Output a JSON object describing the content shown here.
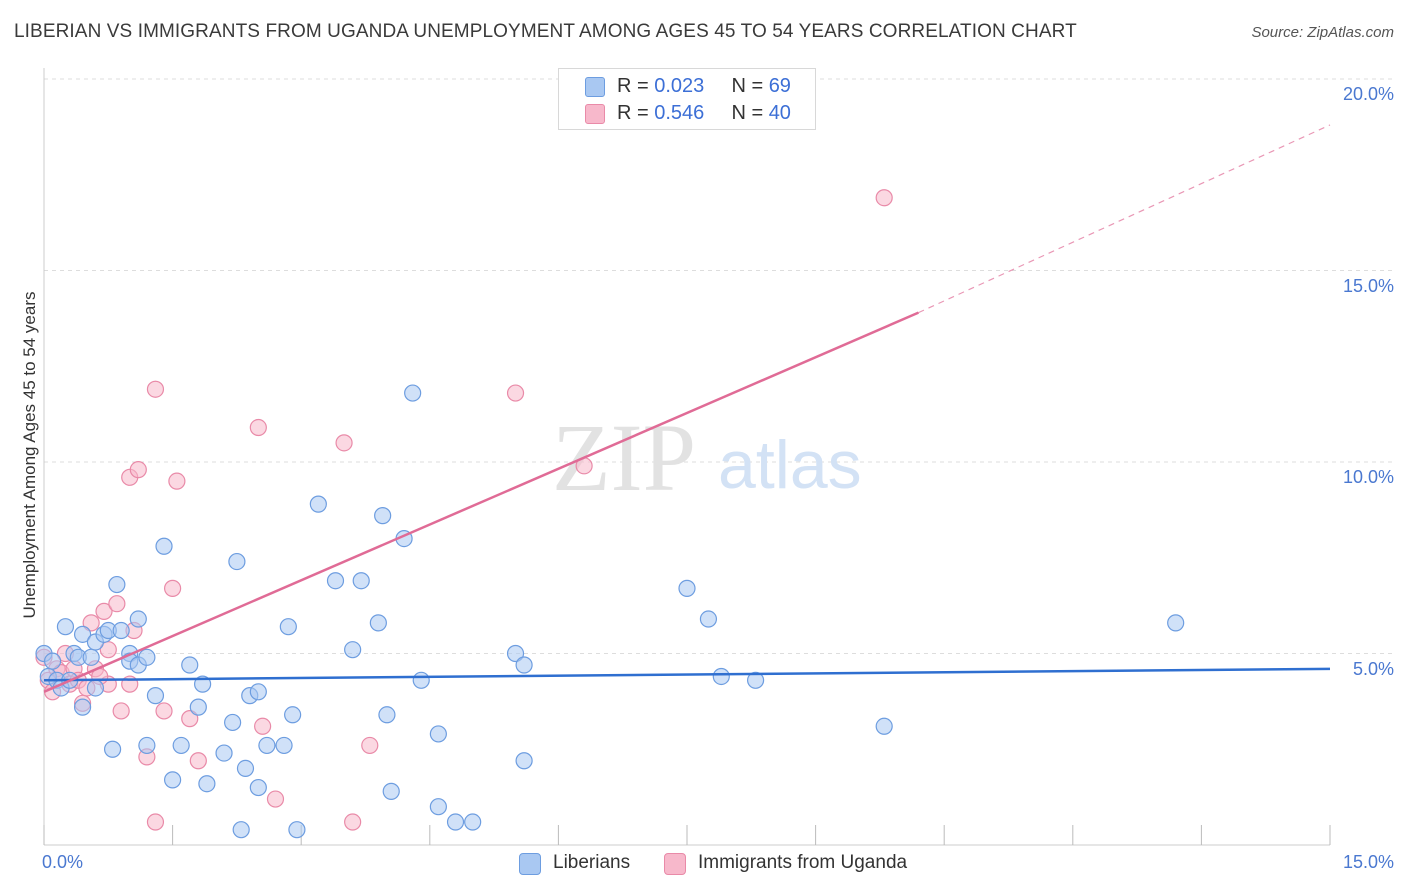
{
  "header": {
    "title": "LIBERIAN VS IMMIGRANTS FROM UGANDA UNEMPLOYMENT AMONG AGES 45 TO 54 YEARS CORRELATION CHART",
    "source": "Source: ZipAtlas.com"
  },
  "watermark": {
    "zip": "ZIP",
    "atlas": "atlas"
  },
  "legend": {
    "rows": [
      {
        "r_label": "R = ",
        "r_value": "0.023",
        "n_label": "N = ",
        "n_value": "69",
        "color": "#a9c8f2"
      },
      {
        "r_label": "R = ",
        "r_value": "0.546",
        "n_label": "N = ",
        "n_value": "40",
        "color": "#f7b8cb"
      }
    ]
  },
  "colors": {
    "blue_fill": "#a9c8f2",
    "blue_stroke": "#6d9de0",
    "blue_line": "#2f6fd0",
    "pink_fill": "#f7b8cb",
    "pink_stroke": "#e98aa8",
    "pink_line": "#e06b96",
    "tick_text": "#4a78d0",
    "grid": "#dddddd"
  },
  "chart_data": {
    "type": "scatter",
    "title": "LIBERIAN VS IMMIGRANTS FROM UGANDA UNEMPLOYMENT AMONG AGES 45 TO 54 YEARS CORRELATION CHART",
    "xlabel": "",
    "ylabel": "Unemployment Among Ages 45 to 54 years",
    "xlim": [
      0,
      15
    ],
    "ylim": [
      0,
      20
    ],
    "x_tick_labels": [
      {
        "value": 0,
        "label": "0.0%"
      },
      {
        "value": 15,
        "label": "15.0%"
      }
    ],
    "y_tick_labels": [
      {
        "value": 5,
        "label": "5.0%"
      },
      {
        "value": 10,
        "label": "10.0%"
      },
      {
        "value": 15,
        "label": "15.0%"
      },
      {
        "value": 20,
        "label": "20.0%"
      }
    ],
    "grid": true,
    "legend_placement": "top-center and bottom-center",
    "series": [
      {
        "name": "Liberians",
        "r": 0.023,
        "n": 69,
        "trend": {
          "x": [
            0,
            15
          ],
          "y": [
            4.3,
            4.6
          ]
        },
        "points": [
          [
            0.0,
            5.0
          ],
          [
            0.05,
            4.4
          ],
          [
            0.1,
            4.8
          ],
          [
            0.15,
            4.3
          ],
          [
            0.2,
            4.1
          ],
          [
            0.25,
            5.7
          ],
          [
            0.3,
            4.3
          ],
          [
            0.35,
            5.0
          ],
          [
            0.4,
            4.9
          ],
          [
            0.45,
            5.5
          ],
          [
            0.45,
            3.6
          ],
          [
            0.55,
            4.9
          ],
          [
            0.6,
            5.3
          ],
          [
            0.6,
            4.1
          ],
          [
            0.7,
            5.5
          ],
          [
            0.75,
            5.6
          ],
          [
            0.8,
            2.5
          ],
          [
            0.85,
            6.8
          ],
          [
            0.9,
            5.6
          ],
          [
            1.0,
            5.0
          ],
          [
            1.0,
            4.8
          ],
          [
            1.1,
            5.9
          ],
          [
            1.1,
            4.7
          ],
          [
            1.2,
            4.9
          ],
          [
            1.2,
            2.6
          ],
          [
            1.3,
            3.9
          ],
          [
            1.4,
            7.8
          ],
          [
            1.5,
            1.7
          ],
          [
            1.6,
            2.6
          ],
          [
            1.7,
            4.7
          ],
          [
            1.8,
            3.6
          ],
          [
            1.85,
            4.2
          ],
          [
            1.9,
            1.6
          ],
          [
            2.1,
            2.4
          ],
          [
            2.2,
            3.2
          ],
          [
            2.25,
            7.4
          ],
          [
            2.3,
            0.4
          ],
          [
            2.35,
            2.0
          ],
          [
            2.4,
            3.9
          ],
          [
            2.5,
            1.5
          ],
          [
            2.5,
            4.0
          ],
          [
            2.6,
            2.6
          ],
          [
            2.8,
            2.6
          ],
          [
            2.85,
            5.7
          ],
          [
            2.9,
            3.4
          ],
          [
            2.95,
            0.4
          ],
          [
            3.2,
            8.9
          ],
          [
            3.4,
            6.9
          ],
          [
            3.6,
            5.1
          ],
          [
            3.7,
            6.9
          ],
          [
            3.9,
            5.8
          ],
          [
            3.95,
            8.6
          ],
          [
            4.0,
            3.4
          ],
          [
            4.05,
            1.4
          ],
          [
            4.2,
            8.0
          ],
          [
            4.3,
            11.8
          ],
          [
            4.4,
            4.3
          ],
          [
            4.6,
            2.9
          ],
          [
            4.6,
            1.0
          ],
          [
            4.8,
            0.6
          ],
          [
            5.0,
            0.6
          ],
          [
            5.5,
            5.0
          ],
          [
            5.6,
            4.7
          ],
          [
            5.6,
            2.2
          ],
          [
            7.5,
            6.7
          ],
          [
            7.75,
            5.9
          ],
          [
            7.9,
            4.4
          ],
          [
            8.3,
            4.3
          ],
          [
            9.8,
            3.1
          ],
          [
            13.2,
            5.8
          ]
        ]
      },
      {
        "name": "Immigrants from Uganda",
        "r": 0.546,
        "n": 40,
        "trend": {
          "x": [
            0,
            10.2
          ],
          "y": [
            4.0,
            13.9
          ]
        },
        "trend_extension": {
          "x": [
            10.2,
            15
          ],
          "y": [
            13.9,
            18.8
          ]
        },
        "points": [
          [
            0.0,
            4.9
          ],
          [
            0.05,
            4.3
          ],
          [
            0.1,
            4.0
          ],
          [
            0.15,
            4.6
          ],
          [
            0.2,
            4.5
          ],
          [
            0.3,
            4.2
          ],
          [
            0.35,
            4.6
          ],
          [
            0.4,
            4.3
          ],
          [
            0.45,
            3.7
          ],
          [
            0.5,
            4.1
          ],
          [
            0.55,
            5.8
          ],
          [
            0.6,
            4.6
          ],
          [
            0.7,
            6.1
          ],
          [
            0.75,
            4.2
          ],
          [
            0.75,
            5.1
          ],
          [
            0.85,
            6.3
          ],
          [
            0.9,
            3.5
          ],
          [
            1.0,
            9.6
          ],
          [
            1.05,
            5.6
          ],
          [
            1.1,
            9.8
          ],
          [
            1.2,
            2.3
          ],
          [
            1.3,
            11.9
          ],
          [
            1.3,
            0.6
          ],
          [
            1.4,
            3.5
          ],
          [
            1.5,
            6.7
          ],
          [
            1.55,
            9.5
          ],
          [
            1.7,
            3.3
          ],
          [
            1.8,
            2.2
          ],
          [
            2.5,
            10.9
          ],
          [
            2.55,
            3.1
          ],
          [
            2.7,
            1.2
          ],
          [
            3.5,
            10.5
          ],
          [
            3.6,
            0.6
          ],
          [
            3.8,
            2.6
          ],
          [
            5.5,
            11.8
          ],
          [
            6.3,
            9.9
          ],
          [
            9.8,
            16.9
          ],
          [
            0.25,
            5.0
          ],
          [
            0.65,
            4.4
          ],
          [
            1.0,
            4.2
          ]
        ]
      }
    ]
  },
  "axes": {
    "y_title": "Unemployment Among Ages 45 to 54 years"
  },
  "bottom_legend": {
    "items": [
      {
        "label": "Liberians",
        "color": "#a9c8f2"
      },
      {
        "label": "Immigrants from Uganda",
        "color": "#f7b8cb"
      }
    ]
  }
}
